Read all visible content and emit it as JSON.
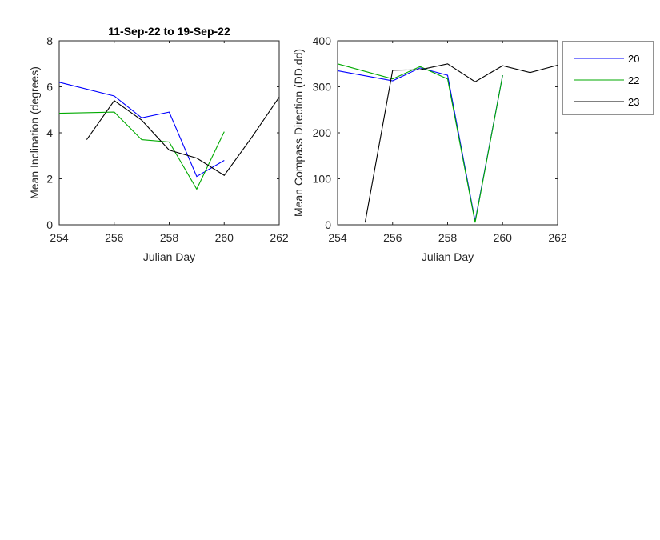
{
  "chart_data": [
    {
      "type": "line",
      "title": "11-Sep-22 to 19-Sep-22",
      "xlabel": "Julian Day",
      "ylabel": "Mean Inclination  (degrees)",
      "xlim": [
        254,
        262
      ],
      "ylim": [
        0,
        8
      ],
      "xticks": [
        "254",
        "256",
        "258",
        "260",
        "262"
      ],
      "yticks": [
        "0",
        "2",
        "4",
        "6",
        "8"
      ],
      "grid": false,
      "series": [
        {
          "name": "20",
          "color": "#0000ff",
          "x": [
            254,
            256,
            257,
            258,
            259,
            260
          ],
          "y": [
            6.2,
            5.6,
            4.65,
            4.9,
            2.1,
            2.8
          ]
        },
        {
          "name": "22",
          "color": "#00aa00",
          "x": [
            254,
            256,
            257,
            258,
            259,
            260
          ],
          "y": [
            4.85,
            4.9,
            3.7,
            3.6,
            1.55,
            4.05
          ]
        },
        {
          "name": "23",
          "color": "#000000",
          "x": [
            255,
            256,
            257,
            258,
            259,
            260,
            261,
            262
          ],
          "y": [
            3.7,
            5.4,
            4.55,
            3.25,
            2.9,
            2.15,
            3.8,
            5.55
          ]
        }
      ]
    },
    {
      "type": "line",
      "title": "",
      "xlabel": "Julian Day",
      "ylabel": "Mean Compass Direction (DD.dd)",
      "xlim": [
        254,
        262
      ],
      "ylim": [
        0,
        400
      ],
      "xticks": [
        "254",
        "256",
        "258",
        "260",
        "262"
      ],
      "yticks": [
        "0",
        "100",
        "200",
        "300",
        "400"
      ],
      "grid": false,
      "legend_placement": "outside-right",
      "series": [
        {
          "name": "20",
          "color": "#0000ff",
          "x": [
            254,
            256,
            257,
            258,
            259,
            260
          ],
          "y": [
            335,
            313,
            341,
            325,
            8,
            325
          ]
        },
        {
          "name": "22",
          "color": "#00aa00",
          "x": [
            254,
            256,
            257,
            258,
            259,
            260
          ],
          "y": [
            350,
            317,
            344,
            317,
            5,
            325
          ]
        },
        {
          "name": "23",
          "color": "#000000",
          "x": [
            255,
            256,
            257,
            258,
            259,
            260,
            261,
            262
          ],
          "y": [
            5,
            336,
            337,
            350,
            311,
            346,
            331,
            347
          ]
        }
      ]
    }
  ],
  "legend": {
    "items": [
      {
        "label": "20",
        "color": "#0000ff"
      },
      {
        "label": "22",
        "color": "#00aa00"
      },
      {
        "label": "23",
        "color": "#000000"
      }
    ]
  }
}
